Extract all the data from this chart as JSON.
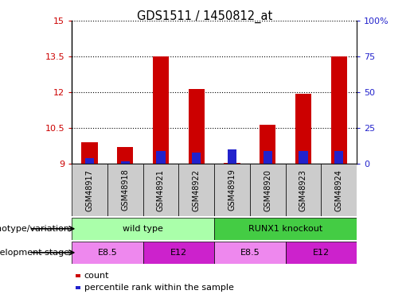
{
  "title": "GDS1511 / 1450812_at",
  "samples": [
    "GSM48917",
    "GSM48918",
    "GSM48921",
    "GSM48922",
    "GSM48919",
    "GSM48920",
    "GSM48923",
    "GSM48924"
  ],
  "count_values": [
    9.9,
    9.7,
    13.5,
    12.15,
    9.05,
    10.65,
    11.95,
    13.5
  ],
  "percentile_values": [
    4,
    2,
    9,
    8,
    10,
    9,
    9,
    9
  ],
  "ylim_left": [
    9,
    15
  ],
  "ylim_right": [
    0,
    100
  ],
  "yticks_left": [
    9,
    10.5,
    12,
    13.5,
    15
  ],
  "yticks_right": [
    0,
    25,
    50,
    75,
    100
  ],
  "ytick_labels_left": [
    "9",
    "10.5",
    "12",
    "13.5",
    "15"
  ],
  "ytick_labels_right": [
    "0",
    "25",
    "50",
    "75",
    "100%"
  ],
  "bar_bottom": 9,
  "bar_color_red": "#cc0000",
  "bar_color_blue": "#2222cc",
  "tick_area_bg": "#cccccc",
  "genotype_groups": [
    {
      "label": "wild type",
      "start": 0,
      "end": 4,
      "color": "#aaffaa"
    },
    {
      "label": "RUNX1 knockout",
      "start": 4,
      "end": 8,
      "color": "#44cc44"
    }
  ],
  "dev_stage_groups": [
    {
      "label": "E8.5",
      "start": 0,
      "end": 2,
      "color": "#ee88ee"
    },
    {
      "label": "E12",
      "start": 2,
      "end": 4,
      "color": "#cc22cc"
    },
    {
      "label": "E8.5",
      "start": 4,
      "end": 6,
      "color": "#ee88ee"
    },
    {
      "label": "E12",
      "start": 6,
      "end": 8,
      "color": "#cc22cc"
    }
  ],
  "genotype_label": "genotype/variation",
  "devstage_label": "development stage",
  "legend_count": "count",
  "legend_pct": "percentile rank within the sample",
  "bar_width": 0.45,
  "percentile_bar_width": 0.25
}
